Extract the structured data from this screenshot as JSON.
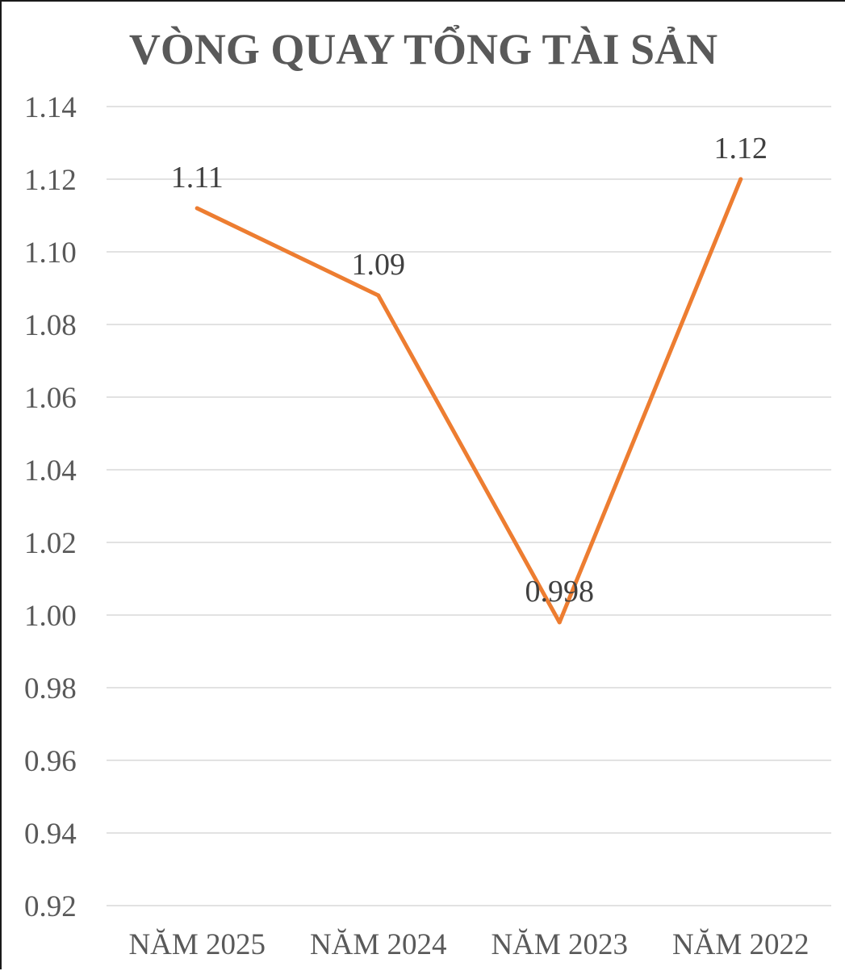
{
  "chart_data": {
    "type": "line",
    "title": "VÒNG QUAY TỔNG TÀI SẢN",
    "categories": [
      "NĂM 2025",
      "NĂM 2024",
      "NĂM 2023",
      "NĂM 2022"
    ],
    "series": [
      {
        "values": [
          1.112,
          1.088,
          0.998,
          1.12
        ],
        "labels": [
          "1.11",
          "1.09",
          "0.998",
          "1.12"
        ]
      }
    ],
    "ylim": [
      0.92,
      1.14
    ],
    "yticks": [
      "0.92",
      "0.94",
      "0.96",
      "0.98",
      "1.00",
      "1.02",
      "1.04",
      "1.06",
      "1.08",
      "1.10",
      "1.12",
      "1.14"
    ],
    "grid": true,
    "colors": {
      "line": "#ED7D31",
      "grid": "#D9D9D9",
      "text": "#595959"
    }
  }
}
